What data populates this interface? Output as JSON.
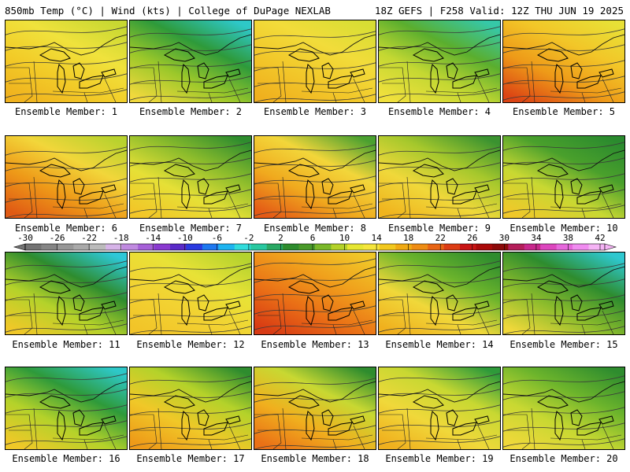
{
  "header": {
    "left": "850mb Temp (°C) | Wind (kts) | College of DuPage NEXLAB",
    "right": "18Z GEFS | F258 Valid: 12Z THU JUN 19 2025"
  },
  "colorbar": {
    "labels": [
      "-30",
      "-26",
      "-22",
      "-18",
      "-14",
      "-10",
      "-6",
      "-2",
      "2",
      "6",
      "10",
      "14",
      "18",
      "22",
      "26",
      "30",
      "34",
      "38",
      "42"
    ],
    "colors": [
      "#737373",
      "#858585",
      "#979797",
      "#a9a9a9",
      "#bbbbbb",
      "#d6b4e8",
      "#c08ae0",
      "#a660d8",
      "#8a3ad0",
      "#5a2ac8",
      "#2a3ae0",
      "#1e78f0",
      "#1eb4f0",
      "#32dcdc",
      "#28c8a0",
      "#2aa864",
      "#2e8c2e",
      "#4a9a2a",
      "#7ab82a",
      "#b4d22a",
      "#e6e632",
      "#f5e63c",
      "#f2c81e",
      "#f0aa14",
      "#ee8c14",
      "#e86414",
      "#dc3c14",
      "#c81414",
      "#aa0a0a",
      "#8c0a0a",
      "#b41e5a",
      "#c8288c",
      "#dc46be",
      "#e668dc",
      "#f08cf0",
      "#f5b4f5"
    ]
  },
  "members": [
    {
      "caption": "Ensemble Member: 1",
      "fill": [
        "#c8d832",
        "#f0e23c",
        "#f2cc28",
        "#f0b21e"
      ]
    },
    {
      "caption": "Ensemble Member: 2",
      "fill": [
        "#2ec8c8",
        "#2e9a3a",
        "#9cc82a",
        "#f0d83c"
      ]
    },
    {
      "caption": "Ensemble Member: 3",
      "fill": [
        "#d8de34",
        "#f2dc3a",
        "#f2c82a",
        "#f0b01e"
      ]
    },
    {
      "caption": "Ensemble Member: 4",
      "fill": [
        "#36c8a8",
        "#5aae2e",
        "#c4d832",
        "#f0e03c"
      ]
    },
    {
      "caption": "Ensemble Member: 5",
      "fill": [
        "#e8e036",
        "#f2c628",
        "#ee9a18",
        "#dc4414"
      ]
    },
    {
      "caption": "Ensemble Member: 6",
      "fill": [
        "#b8d22e",
        "#f2d63a",
        "#ee9a18",
        "#e05a14"
      ]
    },
    {
      "caption": "Ensemble Member: 7",
      "fill": [
        "#2e8c2e",
        "#8cbc2c",
        "#e6e036",
        "#f2c628"
      ]
    },
    {
      "caption": "Ensemble Member: 8",
      "fill": [
        "#4aa030",
        "#f2d63a",
        "#f0aa1e",
        "#e45a16"
      ]
    },
    {
      "caption": "Ensemble Member: 9",
      "fill": [
        "#3a9230",
        "#a6c82c",
        "#f0d83a",
        "#f0b41e"
      ]
    },
    {
      "caption": "Ensemble Member: 10",
      "fill": [
        "#2a8a2e",
        "#4aa02c",
        "#c8d832",
        "#f0c82a"
      ]
    },
    {
      "caption": "Ensemble Member: 11",
      "fill": [
        "#2ec8d8",
        "#2e8c2e",
        "#b4d22a",
        "#f0c828"
      ]
    },
    {
      "caption": "Ensemble Member: 12",
      "fill": [
        "#b4d22e",
        "#e8e236",
        "#f2d232",
        "#f2c428"
      ]
    },
    {
      "caption": "Ensemble Member: 13",
      "fill": [
        "#f0c828",
        "#f0a01c",
        "#ea7016",
        "#d83a14"
      ]
    },
    {
      "caption": "Ensemble Member: 14",
      "fill": [
        "#2e8c2e",
        "#6cb42c",
        "#f0d83a",
        "#f0b01e"
      ]
    },
    {
      "caption": "Ensemble Member: 15",
      "fill": [
        "#2ec8d0",
        "#2e8c2e",
        "#8cbc2c",
        "#f0d83a"
      ]
    },
    {
      "caption": "Ensemble Member: 16",
      "fill": [
        "#2ec8c8",
        "#2e9a3a",
        "#b4d22a",
        "#f0c828"
      ]
    },
    {
      "caption": "Ensemble Member: 17",
      "fill": [
        "#2e8c2e",
        "#b4d22a",
        "#f0c828",
        "#ee9a18"
      ]
    },
    {
      "caption": "Ensemble Member: 18",
      "fill": [
        "#2e8c2e",
        "#c8d832",
        "#f0b01e",
        "#ea7016"
      ]
    },
    {
      "caption": "Ensemble Member: 19",
      "fill": [
        "#2e9a3a",
        "#c8d832",
        "#f0d83a",
        "#f0b01e"
      ]
    },
    {
      "caption": "Ensemble Member: 20",
      "fill": [
        "#2e8c2e",
        "#6cb42c",
        "#c8d832",
        "#f0d83a"
      ]
    }
  ]
}
